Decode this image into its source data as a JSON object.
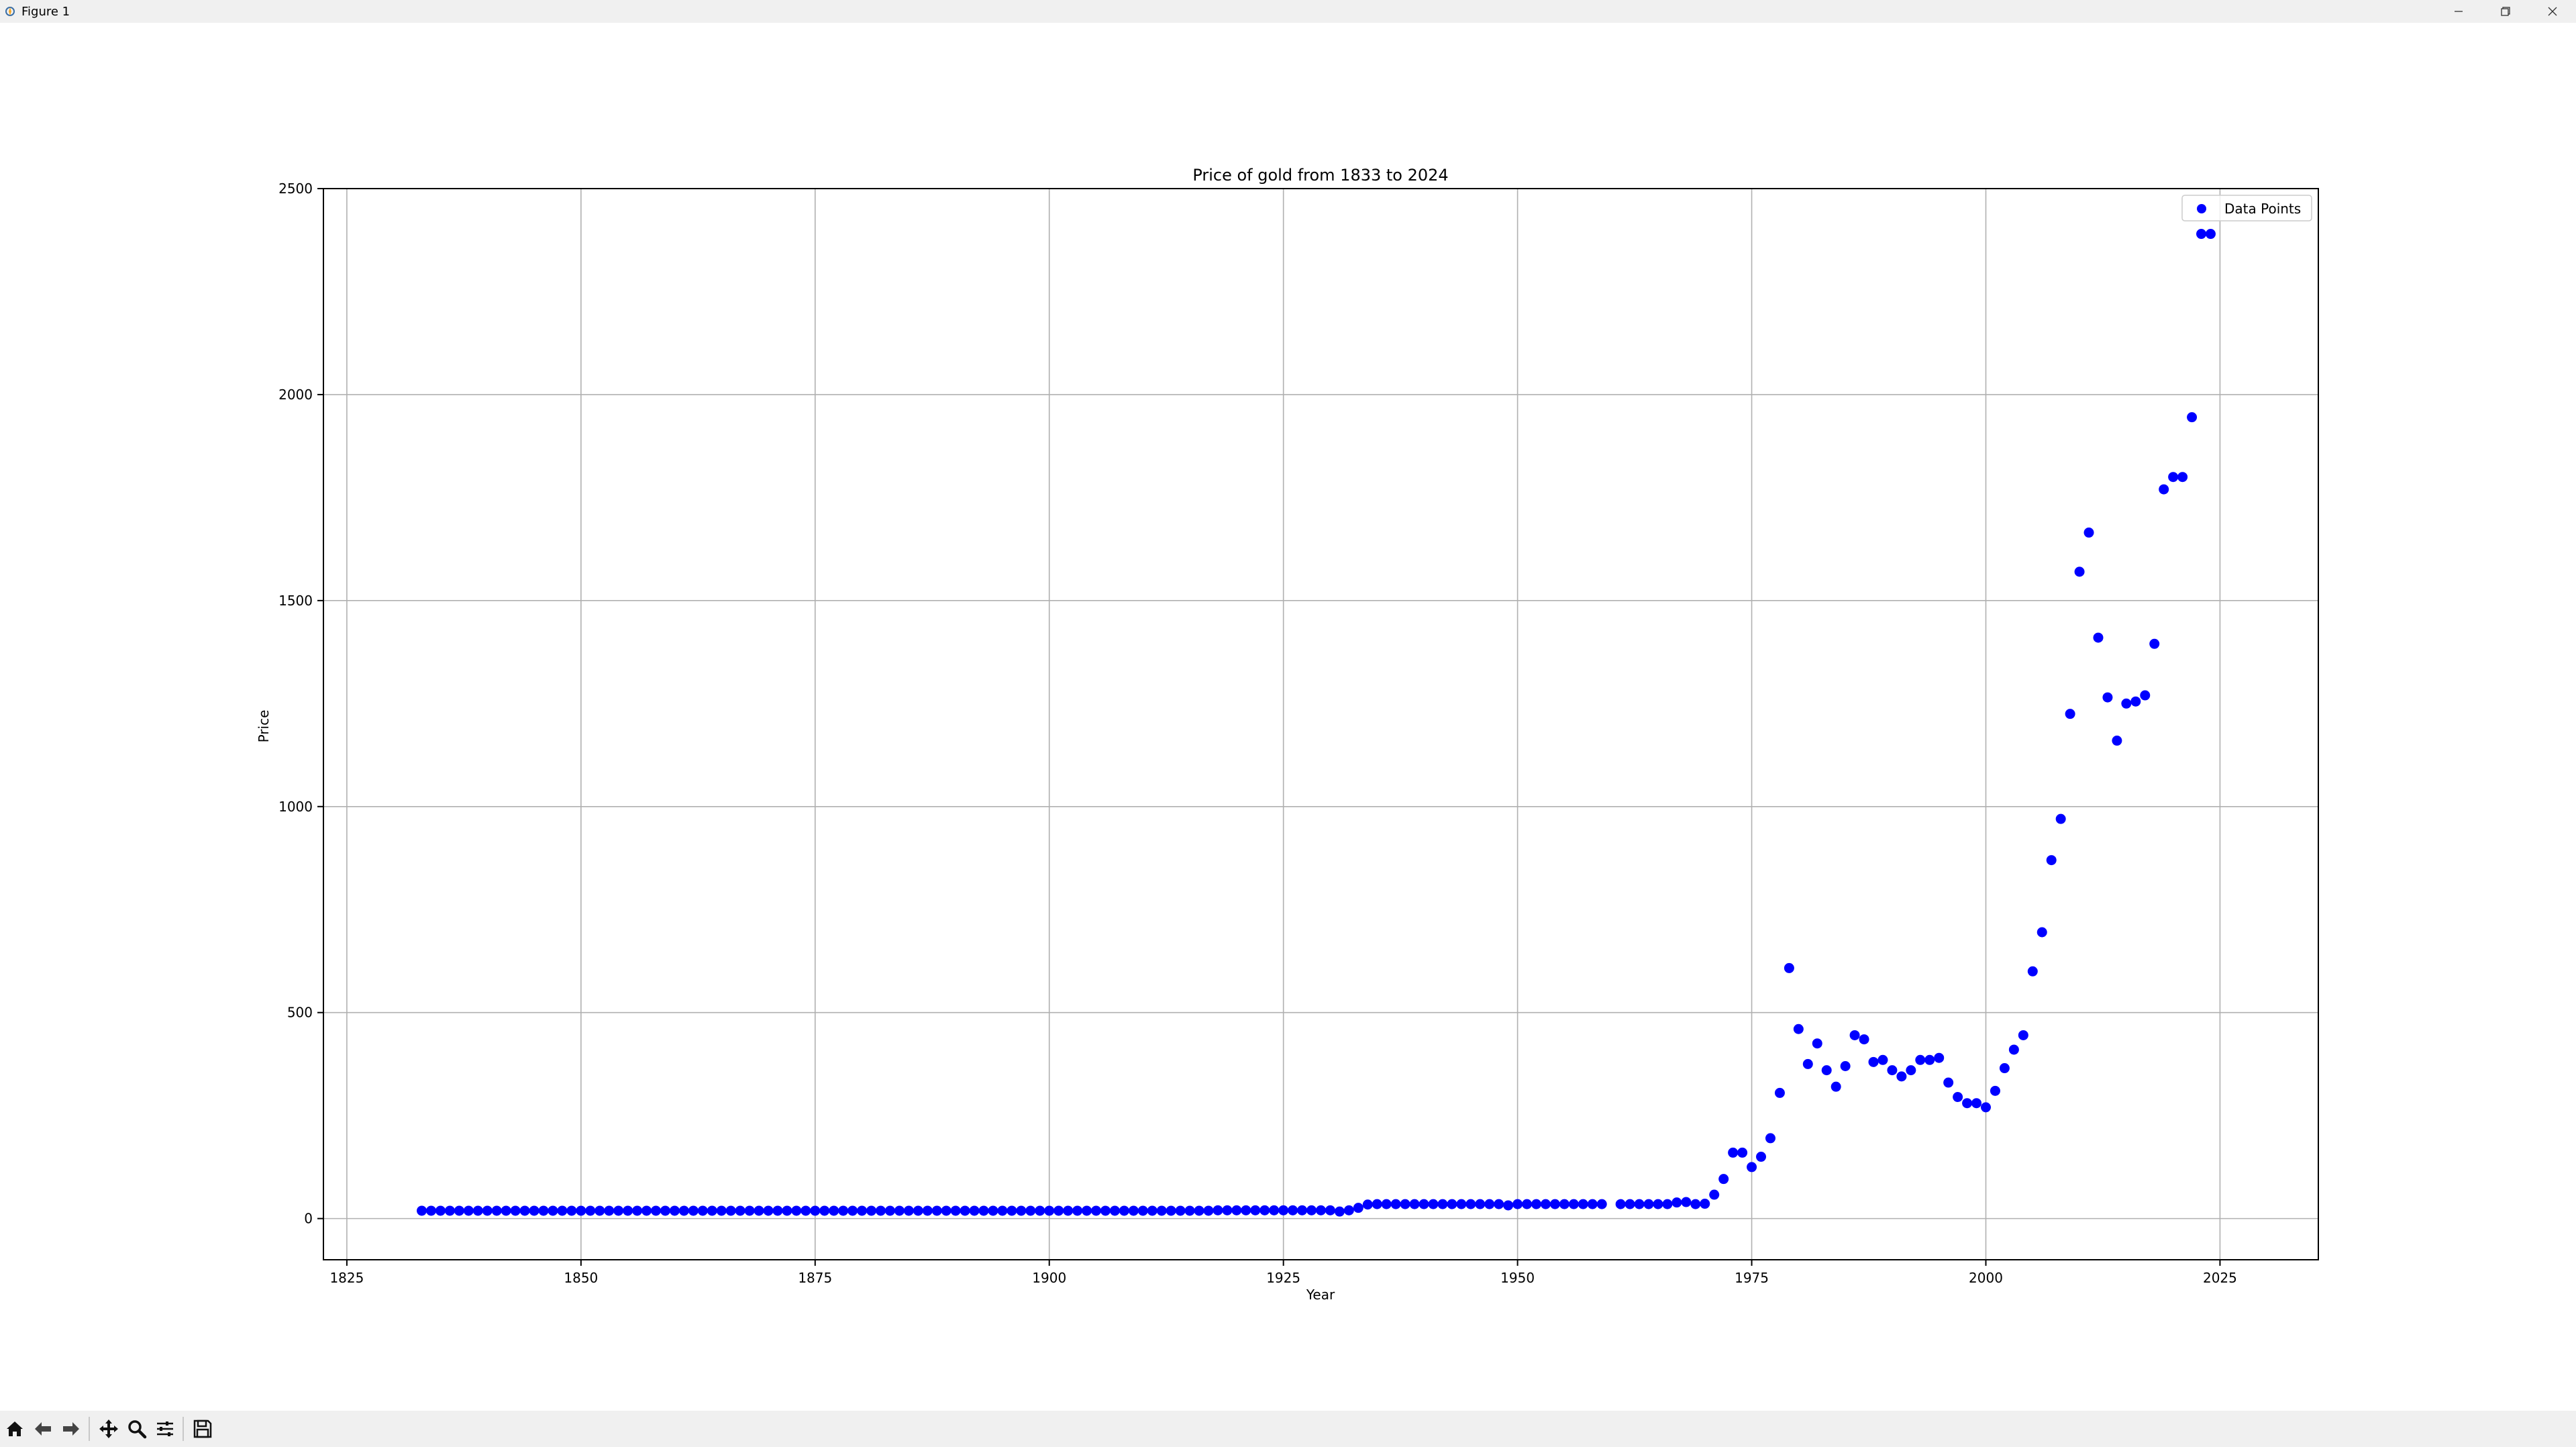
{
  "window": {
    "title": "Figure 1",
    "icons": [
      "matplotlib-icon",
      "minimize-icon",
      "maximize-icon",
      "close-icon"
    ]
  },
  "toolbar": {
    "buttons": [
      "home-icon",
      "back-icon",
      "forward-icon",
      "pan-icon",
      "zoom-icon",
      "configure-subplots-icon",
      "save-icon"
    ]
  },
  "colors": {
    "marker": "#0000ff",
    "grid": "#b0b0b0",
    "axes": "#000000",
    "chrome": "#f0f0f0"
  },
  "chart_data": {
    "type": "scatter",
    "title": "Price of gold from 1833 to 2024",
    "xlabel": "Year",
    "ylabel": "Price",
    "xlim": [
      1822.5,
      2035.5
    ],
    "ylim": [
      -100,
      2500
    ],
    "xticks": [
      1825,
      1850,
      1875,
      1900,
      1925,
      1950,
      1975,
      2000,
      2025
    ],
    "yticks": [
      0,
      500,
      1000,
      1500,
      2000,
      2500
    ],
    "grid": true,
    "legend": {
      "position": "top-right",
      "entries": [
        "Data Points"
      ]
    },
    "series": [
      {
        "name": "Data Points",
        "color": "#0000ff",
        "x": [
          1833,
          1834,
          1835,
          1836,
          1837,
          1838,
          1839,
          1840,
          1841,
          1842,
          1843,
          1844,
          1845,
          1846,
          1847,
          1848,
          1849,
          1850,
          1851,
          1852,
          1853,
          1854,
          1855,
          1856,
          1857,
          1858,
          1859,
          1860,
          1861,
          1862,
          1863,
          1864,
          1865,
          1866,
          1867,
          1868,
          1869,
          1870,
          1871,
          1872,
          1873,
          1874,
          1875,
          1876,
          1877,
          1878,
          1879,
          1880,
          1881,
          1882,
          1883,
          1884,
          1885,
          1886,
          1887,
          1888,
          1889,
          1890,
          1891,
          1892,
          1893,
          1894,
          1895,
          1896,
          1897,
          1898,
          1899,
          1900,
          1901,
          1902,
          1903,
          1904,
          1905,
          1906,
          1907,
          1908,
          1909,
          1910,
          1911,
          1912,
          1913,
          1914,
          1915,
          1916,
          1917,
          1918,
          1919,
          1920,
          1921,
          1922,
          1923,
          1924,
          1925,
          1926,
          1927,
          1928,
          1929,
          1930,
          1931,
          1932,
          1933,
          1934,
          1935,
          1936,
          1937,
          1938,
          1939,
          1940,
          1941,
          1942,
          1943,
          1944,
          1945,
          1946,
          1947,
          1948,
          1949,
          1950,
          1951,
          1952,
          1953,
          1954,
          1955,
          1956,
          1957,
          1958,
          1959,
          1961,
          1962,
          1963,
          1964,
          1965,
          1966,
          1967,
          1968,
          1969,
          1970,
          1971,
          1972,
          1973,
          1974,
          1975,
          1976,
          1977,
          1978,
          1979,
          1980,
          1981,
          1982,
          1983,
          1984,
          1985,
          1986,
          1987,
          1988,
          1989,
          1990,
          1991,
          1992,
          1993,
          1994,
          1995,
          1996,
          1997,
          1998,
          1999,
          2000,
          2001,
          2002,
          2003,
          2004,
          2005,
          2006,
          2007,
          2008,
          2009,
          2010,
          2011,
          2012,
          2013,
          2014,
          2015,
          2016,
          2017,
          2018,
          2019,
          2020,
          2021,
          2022,
          2023,
          2024
        ],
        "y": [
          19,
          19,
          19,
          19,
          19,
          19,
          19,
          19,
          19,
          19,
          19,
          19,
          19,
          19,
          19,
          19,
          19,
          19,
          19,
          19,
          19,
          19,
          19,
          19,
          19,
          19,
          19,
          19,
          19,
          19,
          19,
          19,
          19,
          19,
          19,
          19,
          19,
          19,
          19,
          19,
          19,
          19,
          19,
          19,
          19,
          19,
          19,
          19,
          19,
          19,
          19,
          19,
          19,
          19,
          19,
          19,
          19,
          19,
          19,
          19,
          19,
          19,
          19,
          19,
          19,
          19,
          19,
          19,
          19,
          19,
          19,
          19,
          19,
          19,
          19,
          19,
          19,
          19,
          19,
          19,
          19,
          19,
          19,
          19,
          19,
          20,
          20,
          20,
          20,
          20,
          20,
          20,
          20,
          20,
          20,
          20,
          20,
          20,
          17,
          20,
          26,
          34,
          35,
          35,
          35,
          35,
          35,
          35,
          35,
          35,
          35,
          35,
          35,
          35,
          35,
          35,
          32,
          35,
          35,
          35,
          35,
          35,
          35,
          35,
          35,
          35,
          35,
          35,
          35,
          35,
          35,
          35,
          35,
          39,
          40,
          35,
          36,
          58,
          96,
          160,
          160,
          125,
          150,
          195,
          305,
          608,
          460,
          375,
          425,
          360,
          320,
          370,
          445,
          435,
          380,
          385,
          360,
          345,
          360,
          385,
          385,
          390,
          330,
          295,
          280,
          280,
          270,
          310,
          365,
          410,
          445,
          600,
          695,
          870,
          970,
          1225,
          1570,
          1665,
          1410,
          1265,
          1160,
          1250,
          1255,
          1270,
          1395,
          1770,
          1800,
          1800,
          1945,
          2390,
          2390
        ]
      }
    ]
  }
}
